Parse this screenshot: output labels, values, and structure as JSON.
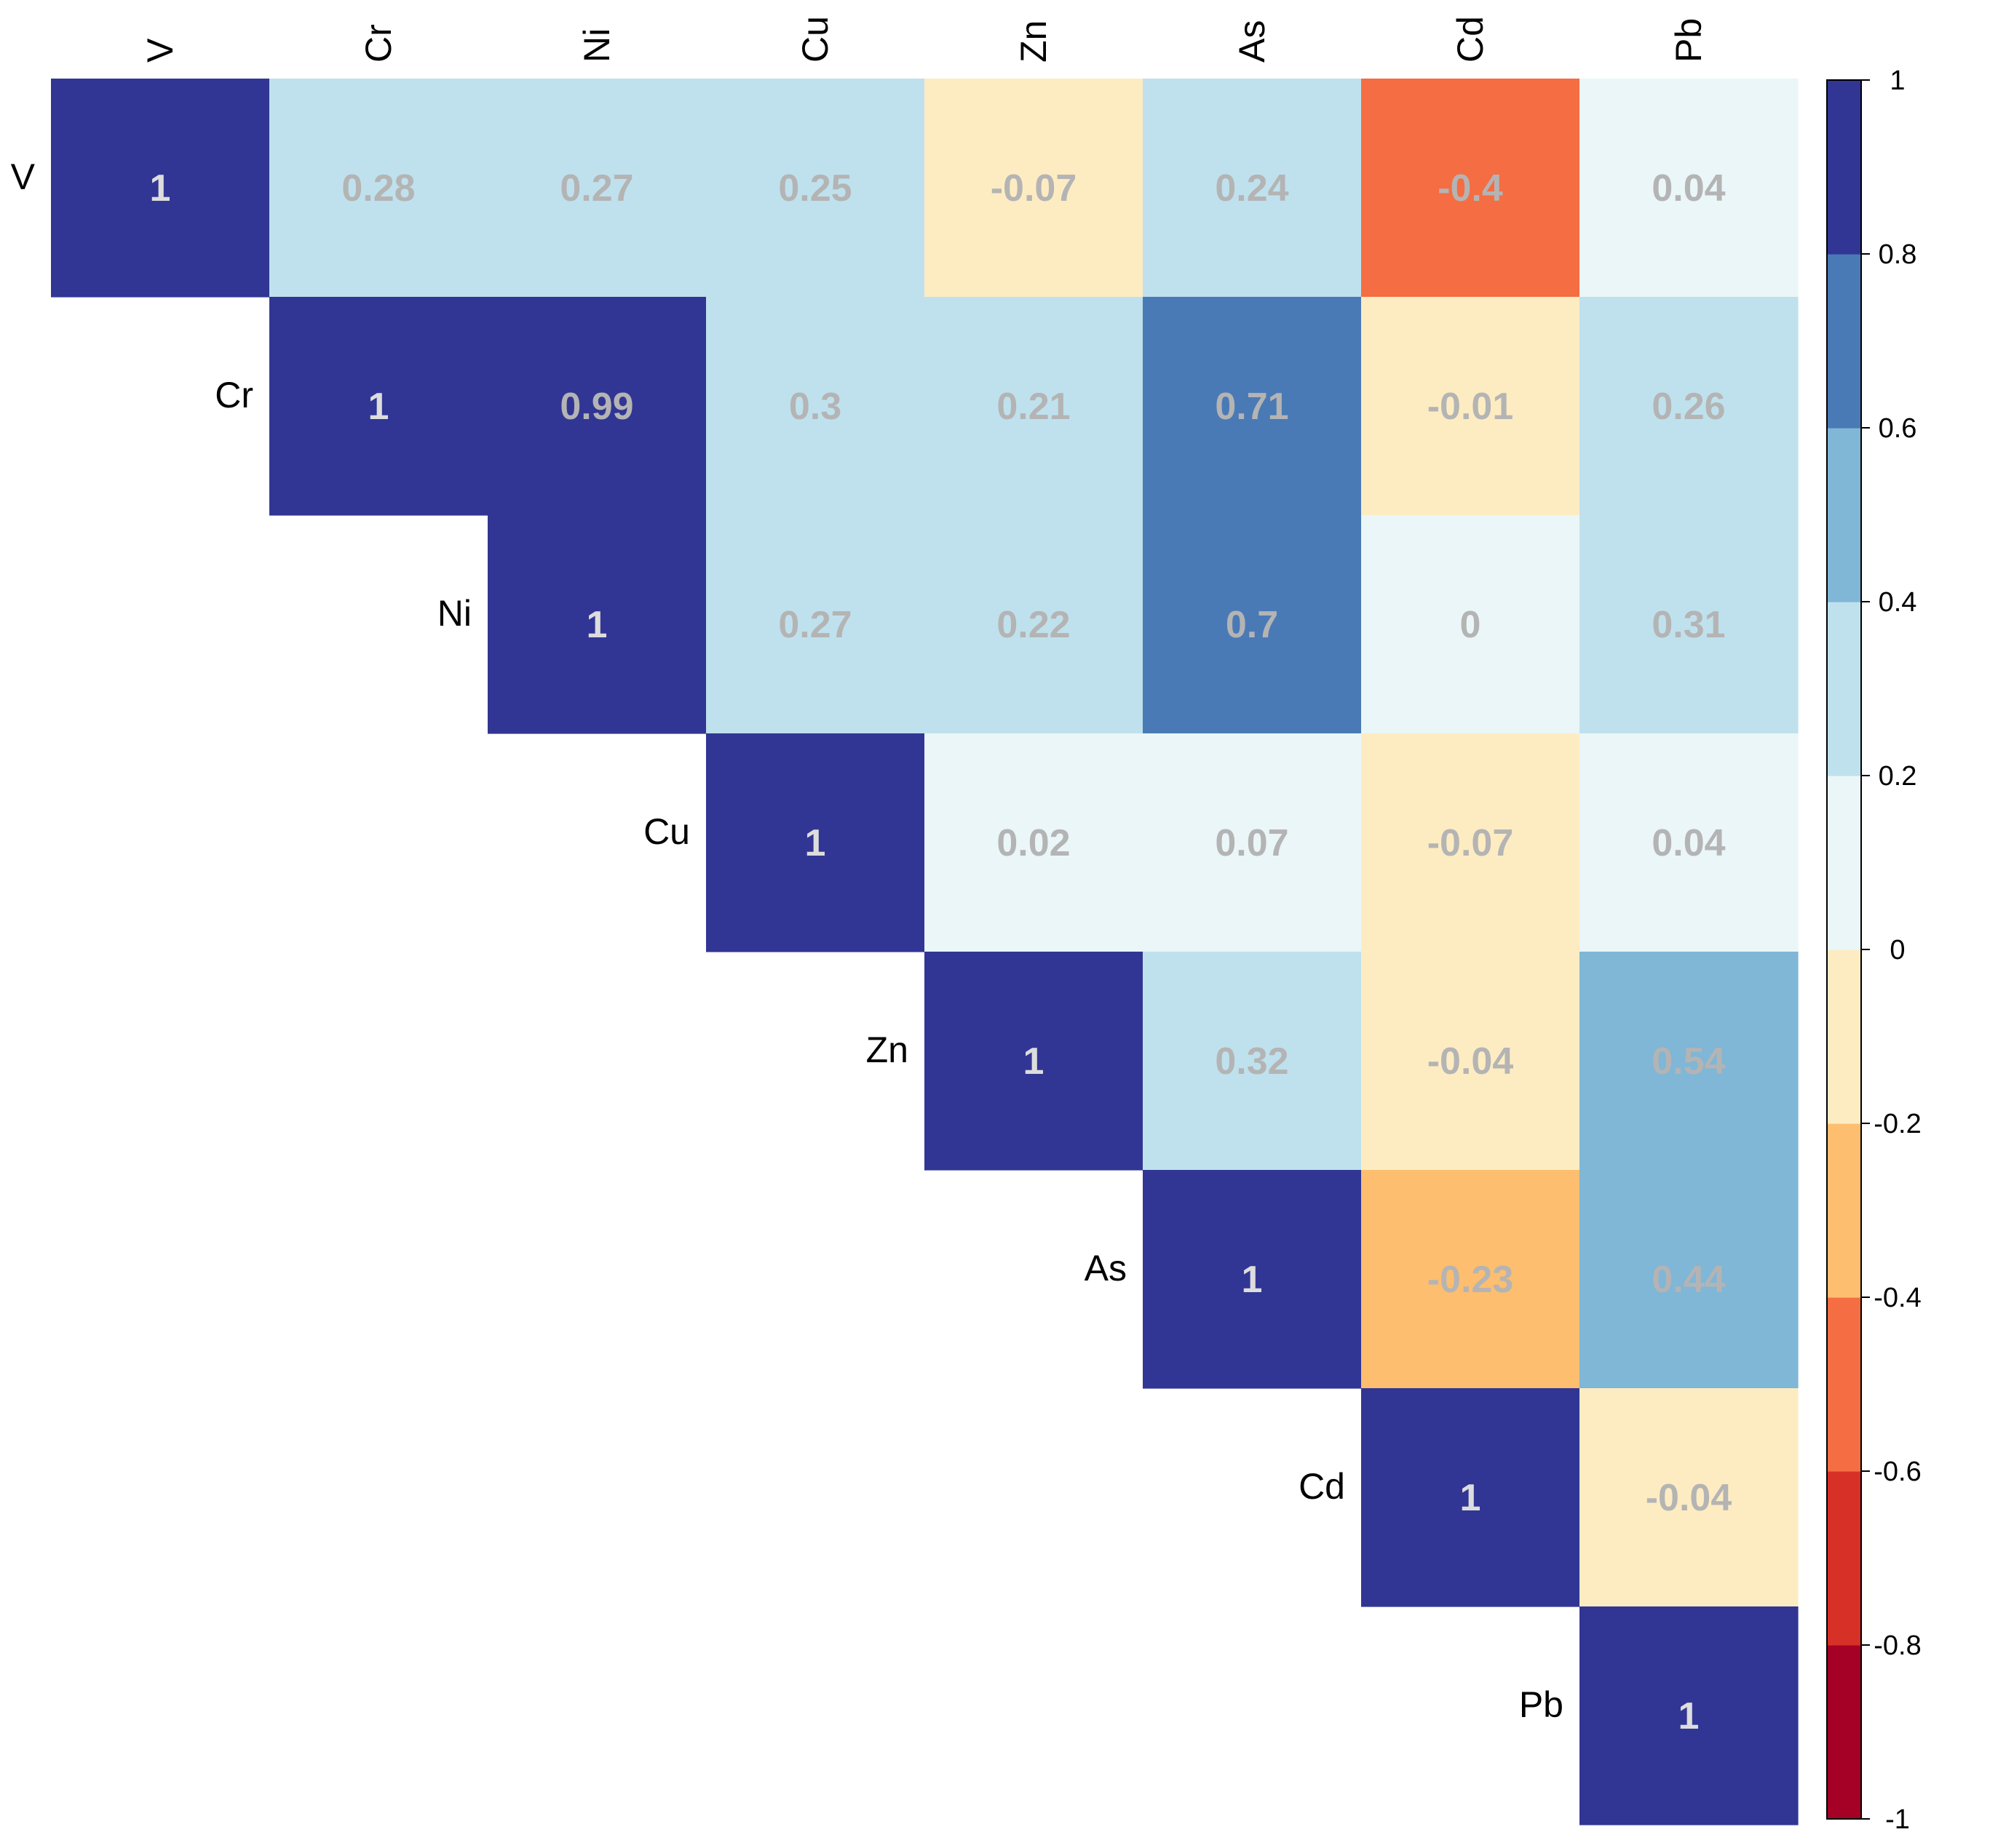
{
  "chart_data": {
    "type": "heatmap",
    "subtype": "correlation-upper-triangle",
    "variables": [
      "V",
      "Cr",
      "Ni",
      "Cu",
      "Zn",
      "As",
      "Cd",
      "Pb"
    ],
    "matrix": [
      [
        1,
        0.28,
        0.27,
        0.25,
        -0.07,
        0.24,
        -0.4,
        0.04
      ],
      [
        null,
        1,
        0.99,
        0.3,
        0.21,
        0.71,
        -0.01,
        0.26
      ],
      [
        null,
        null,
        1,
        0.27,
        0.22,
        0.7,
        0,
        0.31
      ],
      [
        null,
        null,
        null,
        1,
        0.02,
        0.07,
        -0.07,
        0.04
      ],
      [
        null,
        null,
        null,
        null,
        1,
        0.32,
        -0.04,
        0.54
      ],
      [
        null,
        null,
        null,
        null,
        null,
        1,
        -0.23,
        0.44
      ],
      [
        null,
        null,
        null,
        null,
        null,
        null,
        1,
        -0.04
      ],
      [
        null,
        null,
        null,
        null,
        null,
        null,
        null,
        1
      ]
    ],
    "value_labels": [
      [
        "1",
        "0.28",
        "0.27",
        "0.25",
        "-0.07",
        "0.24",
        "-0.4",
        "0.04"
      ],
      [
        "",
        "1",
        "0.99",
        "0.3",
        "0.21",
        "0.71",
        "-0.01",
        "0.26"
      ],
      [
        "",
        "",
        "1",
        "0.27",
        "0.22",
        "0.7",
        "0",
        "0.31"
      ],
      [
        "",
        "",
        "",
        "1",
        "0.02",
        "0.07",
        "-0.07",
        "0.04"
      ],
      [
        "",
        "",
        "",
        "",
        "1",
        "0.32",
        "-0.04",
        "0.54"
      ],
      [
        "",
        "",
        "",
        "",
        "",
        "1",
        "-0.23",
        "0.44"
      ],
      [
        "",
        "",
        "",
        "",
        "",
        "",
        "1",
        "-0.04"
      ],
      [
        "",
        "",
        "",
        "",
        "",
        "",
        "",
        "1"
      ]
    ],
    "color_scale": {
      "range": [
        -1,
        1
      ],
      "step": 0.2,
      "bins": [
        {
          "from": -1.0,
          "to": -0.8,
          "color": "#a50026"
        },
        {
          "from": -0.8,
          "to": -0.6,
          "color": "#d73027"
        },
        {
          "from": -0.6,
          "to": -0.4,
          "color": "#f46d43"
        },
        {
          "from": -0.4,
          "to": -0.2,
          "color": "#fdbe6f"
        },
        {
          "from": -0.2,
          "to": 0.0,
          "color": "#fdecc2"
        },
        {
          "from": 0.0,
          "to": 0.2,
          "color": "#eaf6f8"
        },
        {
          "from": 0.2,
          "to": 0.4,
          "color": "#bfe1ed"
        },
        {
          "from": 0.4,
          "to": 0.6,
          "color": "#80b6d6"
        },
        {
          "from": 0.6,
          "to": 0.8,
          "color": "#4a7ab5"
        },
        {
          "from": 0.8,
          "to": 1.0,
          "color": "#313694"
        }
      ],
      "tick_labels": [
        "-1",
        "-0.8",
        "-0.6",
        "-0.4",
        "-0.2",
        "0",
        "0.2",
        "0.4",
        "0.6",
        "0.8",
        "1"
      ]
    },
    "text_colors": {
      "diagonal": "#dddddd",
      "off_diagonal": "#b4b4b4"
    },
    "legend": "right"
  }
}
